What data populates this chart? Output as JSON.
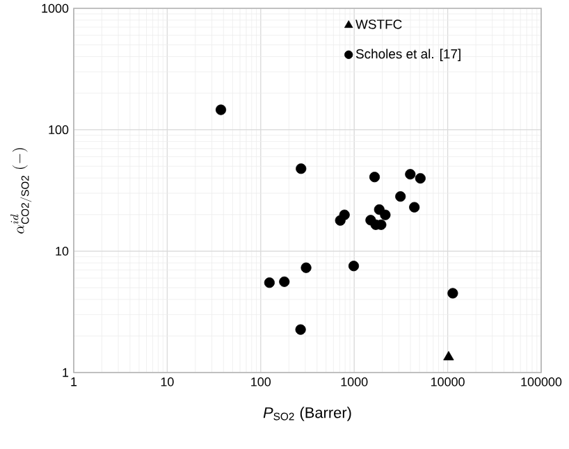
{
  "chart_data": {
    "type": "scatter",
    "xlabel": "*P*$_{SO2}$ (Barrer)",
    "ylabel": "\\alpha^{id}_{\\mathrm{CO2/SO2}}\\ (-)",
    "log": "xy",
    "grid": true,
    "legend": "top right",
    "xlim": [
      1,
      100000
    ],
    "xticks": [
      1,
      10,
      100,
      1000,
      10000,
      100000
    ],
    "ylim": [
      1,
      1000
    ],
    "yticks": [
      1,
      10,
      100,
      1000
    ],
    "series": [
      {
        "name": "WSTFC",
        "color": "#000000",
        "marker": "triangle",
        "x": [
          10230
        ],
        "values": [
          1.34
        ]
      },
      {
        "name": "Scholes et al. [17]",
        "color": "#000000",
        "marker": "circle",
        "x": [
          37.5,
          124,
          179,
          267,
          270,
          306,
          710,
          787,
          988,
          1652,
          1500,
          1700,
          1855,
          1940,
          2150,
          3125,
          3980,
          5100,
          4400,
          11330
        ],
        "values": [
          146,
          5.5,
          5.6,
          2.26,
          47.8,
          7.3,
          17.9,
          19.9,
          7.55,
          40.8,
          18,
          16.5,
          22,
          16.5,
          19.9,
          28.2,
          43,
          39.8,
          23,
          4.5
        ]
      }
    ]
  }
}
